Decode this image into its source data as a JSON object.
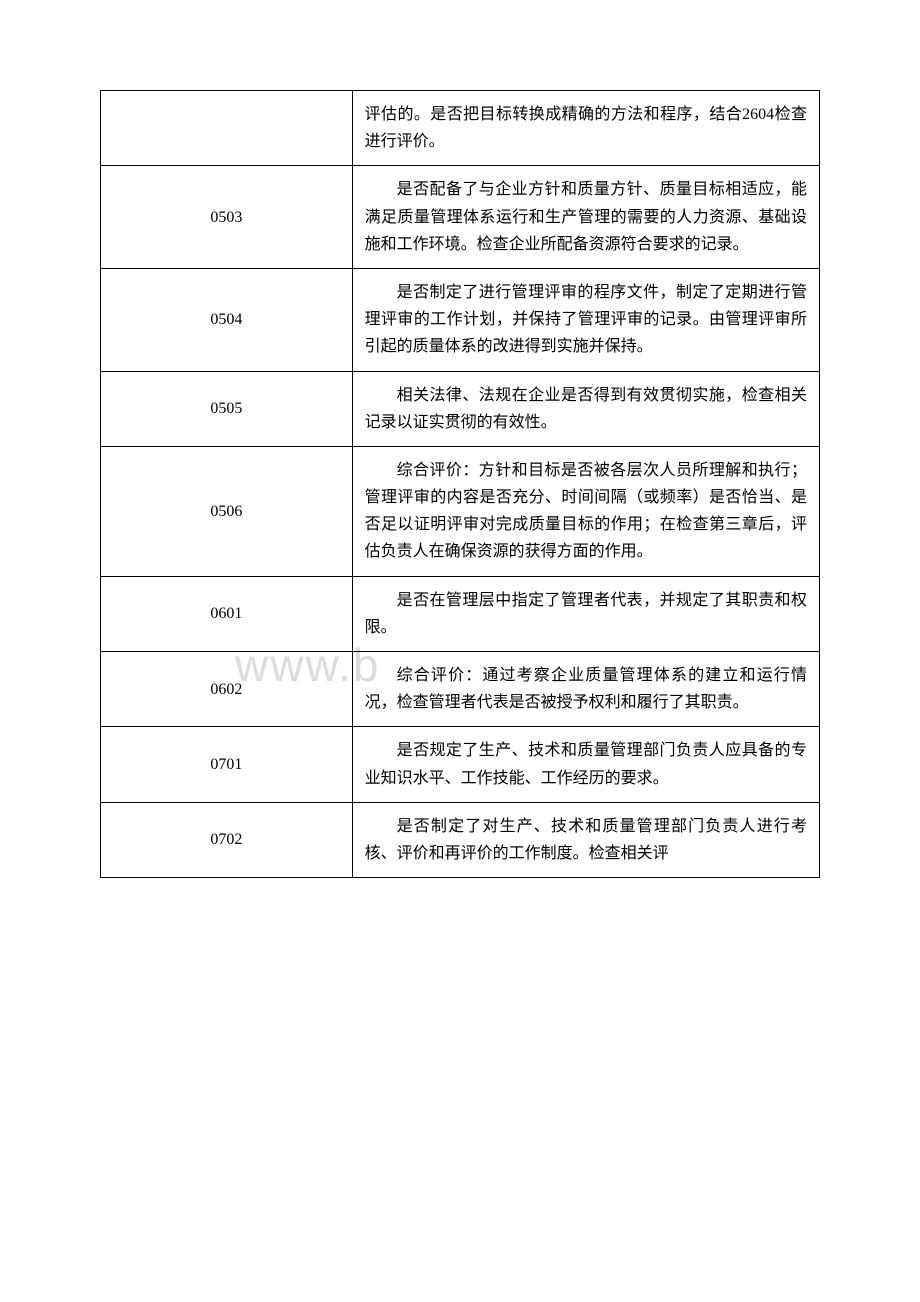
{
  "watermark": "www.b",
  "table": {
    "columns": [
      "code",
      "description"
    ],
    "col_widths": [
      "35%",
      "65%"
    ],
    "border_color": "#000000",
    "background_color": "#ffffff",
    "text_color": "#000000",
    "font_size": 16,
    "line_height": 1.7,
    "rows": [
      {
        "code": "",
        "description": "评估的。是否把目标转换成精确的方法和程序，结合2604检查进行评价。"
      },
      {
        "code": "0503",
        "description": "是否配备了与企业方针和质量方针、质量目标相适应，能满足质量管理体系运行和生产管理的需要的人力资源、基础设施和工作环境。检查企业所配备资源符合要求的记录。"
      },
      {
        "code": "0504",
        "description": "是否制定了进行管理评审的程序文件，制定了定期进行管理评审的工作计划，并保持了管理评审的记录。由管理评审所引起的质量体系的改进得到实施并保持。"
      },
      {
        "code": "0505",
        "description": "相关法律、法规在企业是否得到有效贯彻实施，检查相关记录以证实贯彻的有效性。"
      },
      {
        "code": "0506",
        "description": "综合评价：方针和目标是否被各层次人员所理解和执行；管理评审的内容是否充分、时间间隔（或频率）是否恰当、是否足以证明评审对完成质量目标的作用；在检查第三章后，评估负责人在确保资源的获得方面的作用。"
      },
      {
        "code": "0601",
        "description": "是否在管理层中指定了管理者代表，并规定了其职责和权限。"
      },
      {
        "code": "0602",
        "description": "综合评价：通过考察企业质量管理体系的建立和运行情况，检查管理者代表是否被授予权利和履行了其职责。"
      },
      {
        "code": "0701",
        "description": "是否规定了生产、技术和质量管理部门负责人应具备的专业知识水平、工作技能、工作经历的要求。"
      },
      {
        "code": "0702",
        "description": "是否制定了对生产、技术和质量管理部门负责人进行考核、评价和再评价的工作制度。检查相关评"
      }
    ]
  }
}
